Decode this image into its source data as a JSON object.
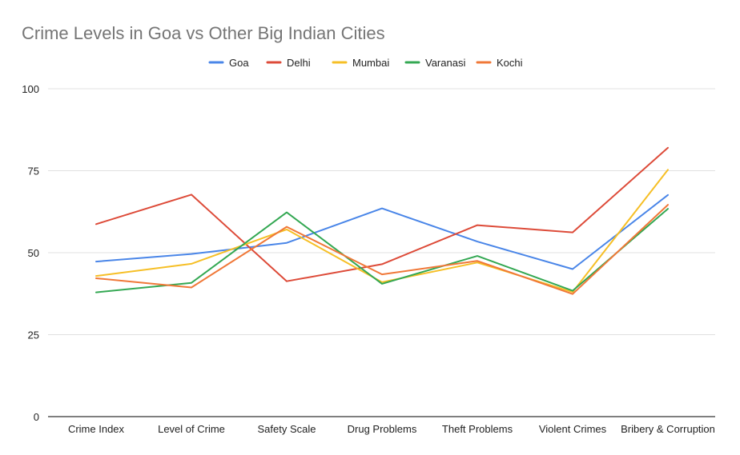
{
  "chart_data": {
    "type": "line",
    "title": "Crime Levels in Goa vs Other Big Indian Cities",
    "xlabel": "",
    "ylabel": "",
    "ylim": [
      0,
      100
    ],
    "yticks": [
      "0",
      "25",
      "50",
      "75",
      "100"
    ],
    "grid": true,
    "legend_position": "top",
    "categories": [
      "Crime Index",
      "Level of Crime",
      "Safety Scale",
      "Drug Problems",
      "Theft Problems",
      "Violent Crimes",
      "Bribery & Corruption"
    ],
    "series": [
      {
        "name": "Goa",
        "color": "#4a86e8",
        "values": [
          47.3,
          49.6,
          53.0,
          63.5,
          53.4,
          45.0,
          67.6
        ]
      },
      {
        "name": "Delhi",
        "color": "#dd4b39",
        "values": [
          58.7,
          67.7,
          41.3,
          46.5,
          58.4,
          56.2,
          82.0
        ]
      },
      {
        "name": "Mumbai",
        "color": "#f6bf26",
        "values": [
          42.9,
          46.6,
          57.1,
          41.0,
          47.0,
          38.0,
          75.3
        ]
      },
      {
        "name": "Varanasi",
        "color": "#34a853",
        "values": [
          37.9,
          40.8,
          62.3,
          40.5,
          49.0,
          38.4,
          63.4
        ]
      },
      {
        "name": "Kochi",
        "color": "#f07838",
        "values": [
          42.2,
          39.4,
          57.9,
          43.4,
          47.5,
          37.4,
          64.6
        ]
      }
    ]
  }
}
